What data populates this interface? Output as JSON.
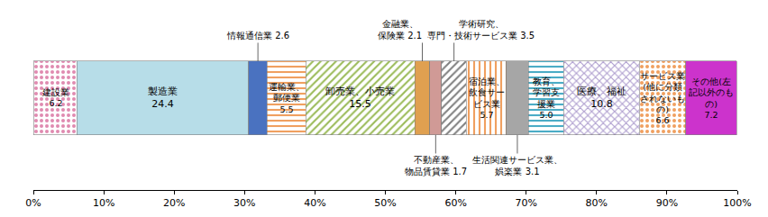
{
  "chart_data": {
    "type": "bar",
    "orientation": "horizontal",
    "stacked": true,
    "data_labels": true,
    "grid": false,
    "tick_labels": "x",
    "xlim": [
      0,
      100
    ],
    "xticks": [
      {
        "value": 0,
        "label": "0%"
      },
      {
        "value": 10,
        "label": "10%"
      },
      {
        "value": 20,
        "label": "20%"
      },
      {
        "value": 30,
        "label": "30%"
      },
      {
        "value": 40,
        "label": "40%"
      },
      {
        "value": 50,
        "label": "50%"
      },
      {
        "value": 60,
        "label": "60%"
      },
      {
        "value": 70,
        "label": "70%"
      },
      {
        "value": 80,
        "label": "80%"
      },
      {
        "value": 90,
        "label": "90%"
      },
      {
        "value": 100,
        "label": "100%"
      }
    ],
    "series": [
      {
        "name": "建設業",
        "values": [
          6.2
        ],
        "value_labels": [
          "6.2"
        ],
        "color": "#e08ab0",
        "marker": "dots"
      },
      {
        "name": "製造業",
        "values": [
          24.4
        ],
        "value_labels": [
          "24.4"
        ],
        "color": "#b7dde8",
        "marker": "solid"
      },
      {
        "name": "情報通信業",
        "values": [
          2.6
        ],
        "value_labels": [
          "2.6"
        ],
        "color": "#4a72c0",
        "marker": "solid"
      },
      {
        "name": "運輸業、郵便業",
        "values": [
          5.5
        ],
        "value_labels": [
          "5.5"
        ],
        "color": "#f0a060",
        "marker": "hlines"
      },
      {
        "name": "卸売業、小売業",
        "values": [
          15.5
        ],
        "value_labels": [
          "15.5"
        ],
        "color": "#9bbb59",
        "marker": "diagonal"
      },
      {
        "name": "金融業、保険業",
        "values": [
          2.1
        ],
        "value_labels": [
          "2.1"
        ],
        "color": "#e0a050",
        "marker": "solid"
      },
      {
        "name": "不動産業、物品賃貸業",
        "values": [
          1.7
        ],
        "value_labels": [
          "1.7"
        ],
        "color": "#d09a96",
        "marker": "solid"
      },
      {
        "name": "学術研究、専門・技術サービス業",
        "values": [
          3.5
        ],
        "value_labels": [
          "3.5"
        ],
        "color": "#808080",
        "marker": "diagonal"
      },
      {
        "name": "宿泊業、飲食サービス業",
        "values": [
          5.7
        ],
        "value_labels": [
          "5.7"
        ],
        "color": "#f0a060",
        "marker": "vlines"
      },
      {
        "name": "生活関連サービス業、娯楽業",
        "values": [
          3.1
        ],
        "value_labels": [
          "3.1"
        ],
        "color": "#a6a6a6",
        "marker": "solid"
      },
      {
        "name": "教育、学習支援業",
        "values": [
          5.0
        ],
        "value_labels": [
          "5.0"
        ],
        "color": "#4bacc6",
        "marker": "hlines"
      },
      {
        "name": "医療、福祉",
        "values": [
          10.8
        ],
        "value_labels": [
          "10.8"
        ],
        "color": "#b0a0d0",
        "marker": "crosshatch"
      },
      {
        "name": "サービス業(他に分類されないもの)",
        "values": [
          6.6
        ],
        "value_labels": [
          "6.6"
        ],
        "color": "#f0a060",
        "marker": "dots"
      },
      {
        "name": "その他(左記以外のもの)",
        "values": [
          7.2
        ],
        "value_labels": [
          "7.2"
        ],
        "color": "#cc33cc",
        "marker": "solid"
      }
    ]
  }
}
